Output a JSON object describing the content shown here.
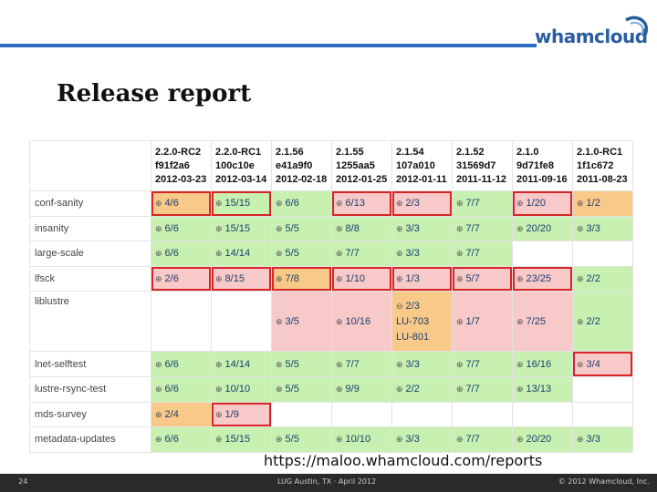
{
  "logo": {
    "text": "whamcloud"
  },
  "title": "Release report",
  "columns": [
    {
      "version": "2.2.0-RC2",
      "hash": "f91f2a6",
      "date": "2012-03-23"
    },
    {
      "version": "2.2.0-RC1",
      "hash": "100c10e",
      "date": "2012-03-14"
    },
    {
      "version": "2.1.56",
      "hash": "e41a9f0",
      "date": "2012-02-18"
    },
    {
      "version": "2.1.55",
      "hash": "1255aa5",
      "date": "2012-01-25"
    },
    {
      "version": "2.1.54",
      "hash": "107a010",
      "date": "2012-01-11"
    },
    {
      "version": "2.1.52",
      "hash": "31569d7",
      "date": "2011-11-12"
    },
    {
      "version": "2.1.0",
      "hash": "9d71fe8",
      "date": "2011-09-16"
    },
    {
      "version": "2.1.0-RC1",
      "hash": "1f1c672",
      "date": "2011-08-23"
    }
  ],
  "rows": [
    {
      "label": "conf-sanity",
      "cells": [
        "4/6",
        "15/15",
        "6/6",
        "6/13",
        "2/3",
        "7/7",
        "1/20",
        "1/2"
      ]
    },
    {
      "label": "insanity",
      "cells": [
        "6/6",
        "15/15",
        "5/5",
        "8/8",
        "3/3",
        "7/7",
        "20/20",
        "3/3"
      ]
    },
    {
      "label": "large-scale",
      "cells": [
        "6/6",
        "14/14",
        "5/5",
        "7/7",
        "3/3",
        "7/7",
        "",
        ""
      ]
    },
    {
      "label": "lfsck",
      "cells": [
        "2/6",
        "8/15",
        "7/8",
        "1/10",
        "1/3",
        "5/7",
        "23/25",
        "2/2"
      ]
    },
    {
      "label": "liblustre",
      "cells": [
        "",
        "",
        "3/5",
        "10/16",
        "2/3",
        "1/7",
        "7/25",
        "2/2"
      ],
      "links": [
        "LU-703",
        "LU-801"
      ]
    },
    {
      "label": "lnet-selftest",
      "cells": [
        "6/6",
        "14/14",
        "5/5",
        "7/7",
        "3/3",
        "7/7",
        "16/16",
        "3/4"
      ]
    },
    {
      "label": "lustre-rsync-test",
      "cells": [
        "6/6",
        "10/10",
        "5/5",
        "9/9",
        "2/2",
        "7/7",
        "13/13",
        ""
      ]
    },
    {
      "label": "mds-survey",
      "cells": [
        "2/4",
        "1/9",
        "",
        "",
        "",
        "",
        "",
        ""
      ]
    },
    {
      "label": "metadata-updates",
      "cells": [
        "6/6",
        "15/15",
        "5/5",
        "10/10",
        "3/3",
        "7/7",
        "20/20",
        "3/3"
      ]
    }
  ],
  "colors": {
    "pass": "#c7f0b1",
    "fail": "#f7c9c9",
    "partial": "#f9c989",
    "border_fail": "#d92525"
  },
  "url": "https://maloo.whamcloud.com/reports",
  "footer": {
    "page": "24",
    "event": "LUG Austin, TX · April 2012",
    "copyright": "© 2012 Whamcloud, Inc."
  }
}
